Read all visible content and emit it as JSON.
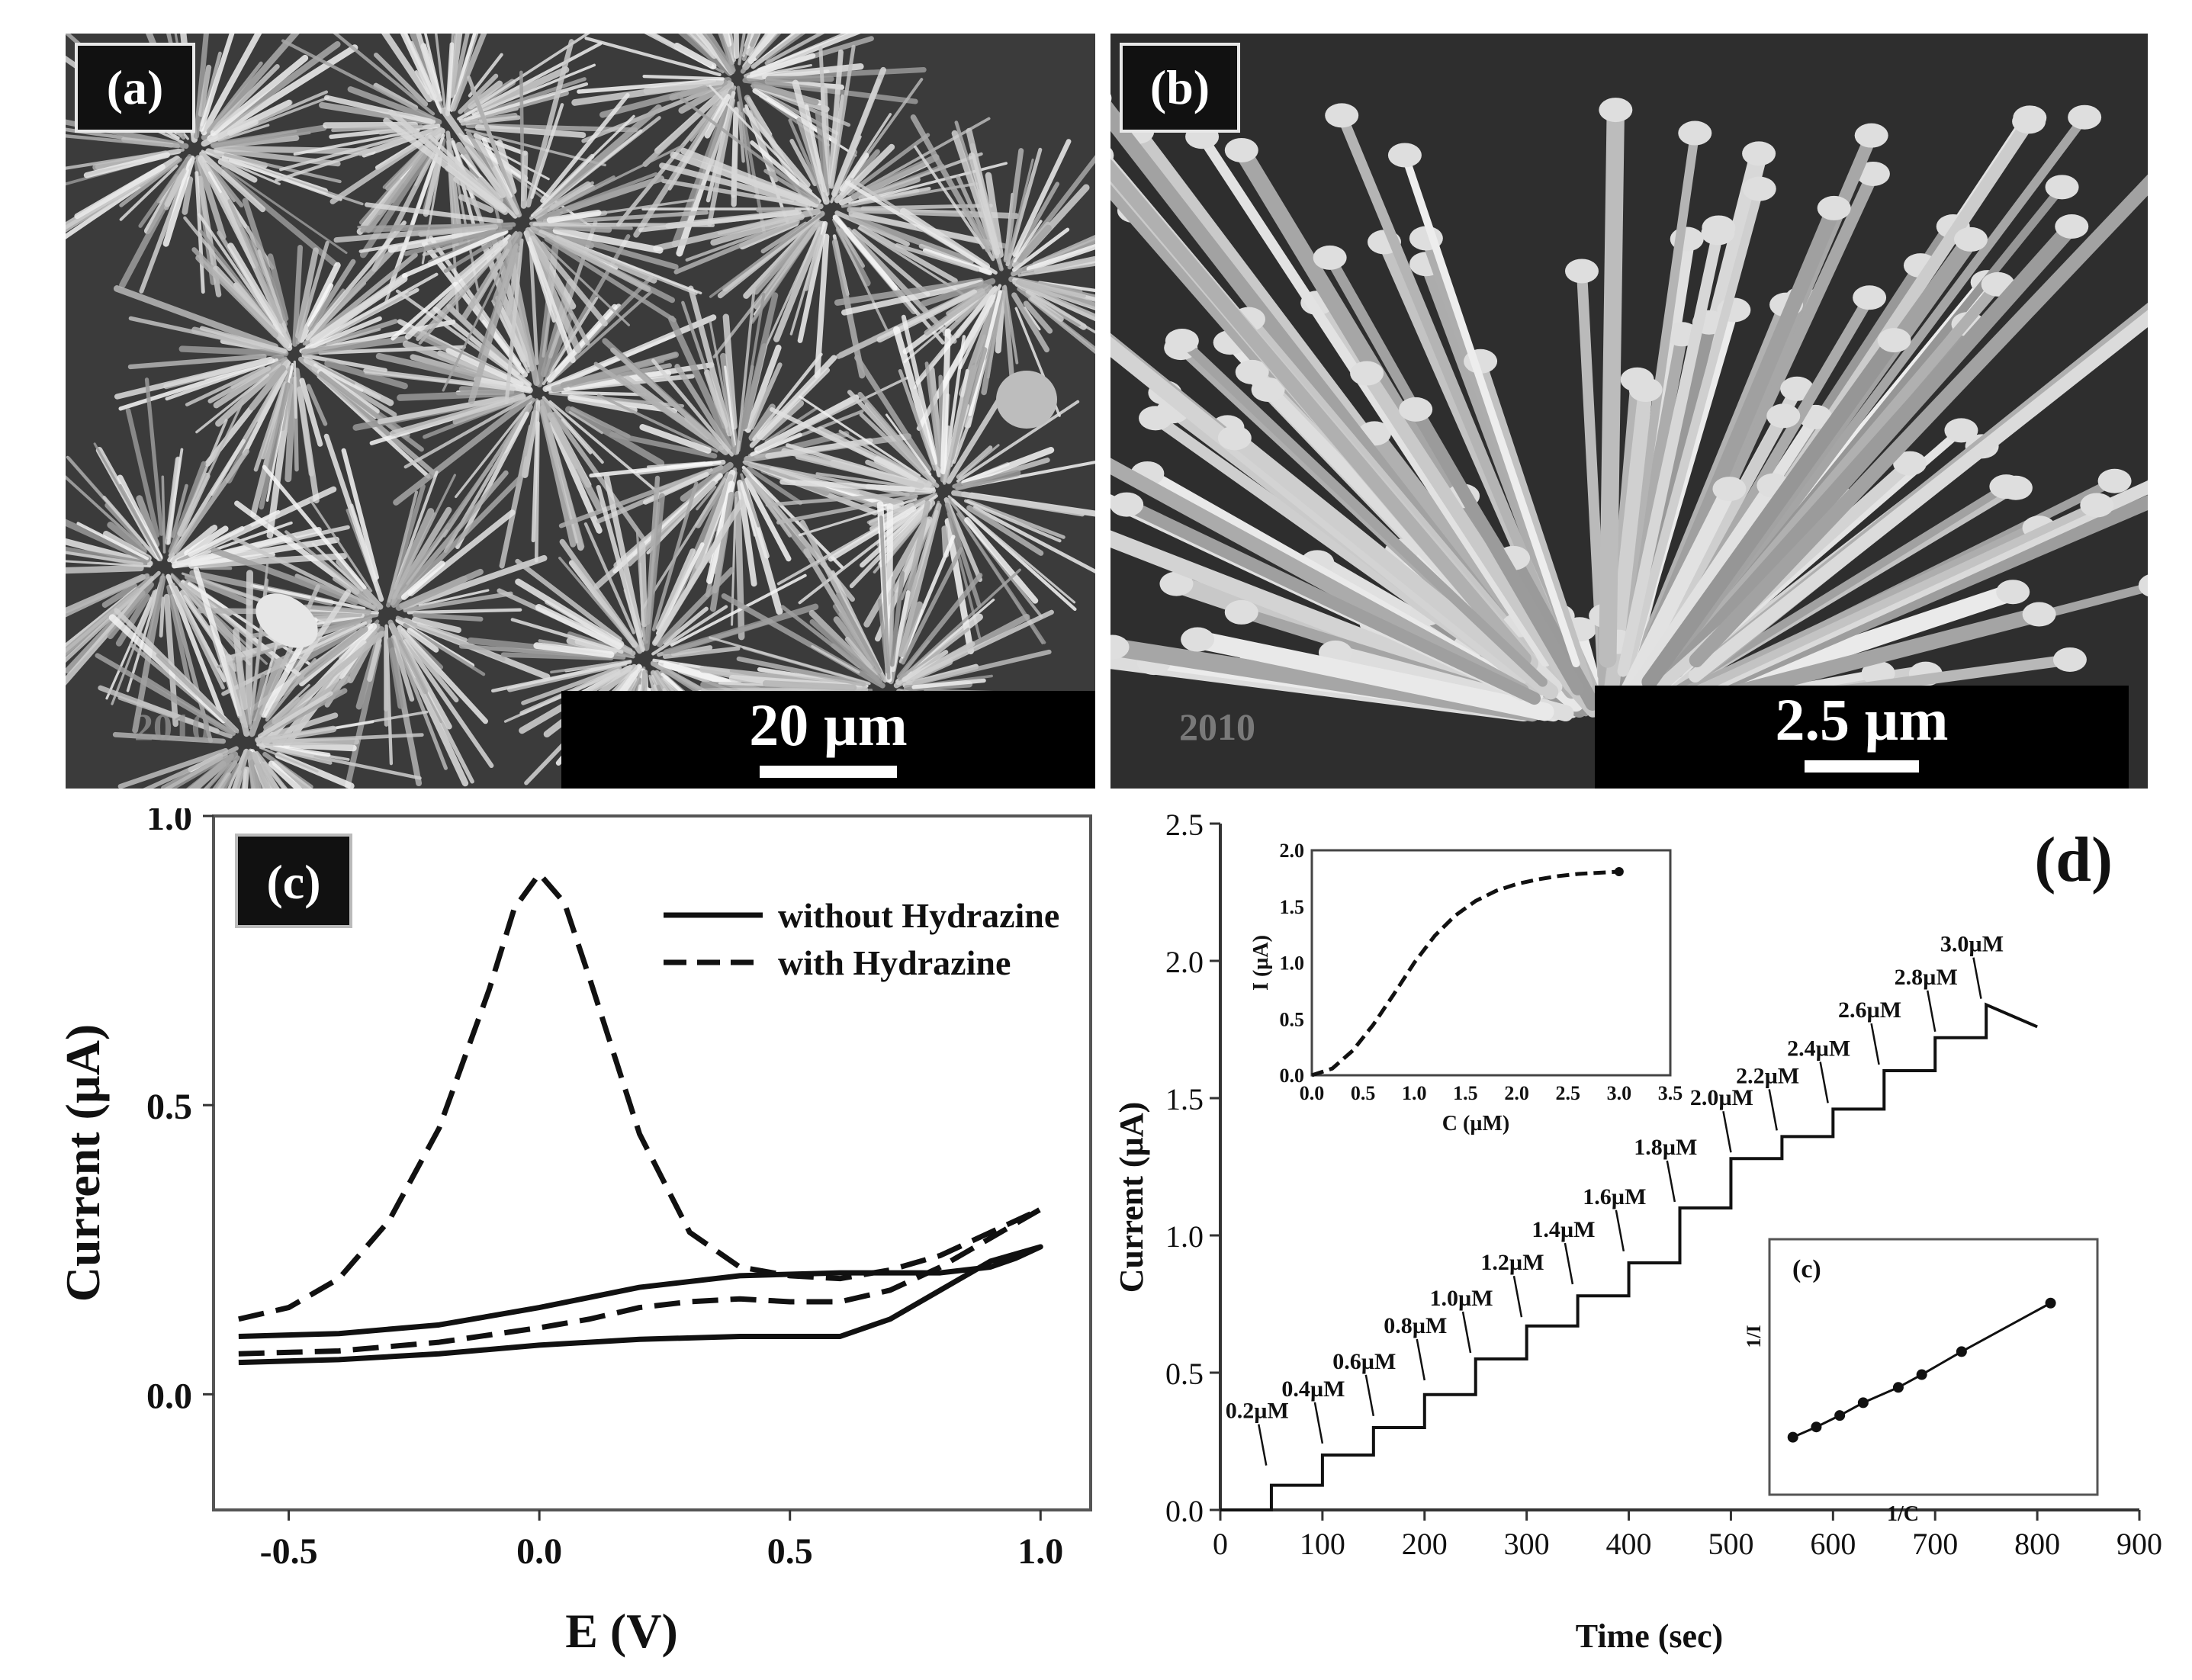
{
  "panels": {
    "a": {
      "label": "(a)",
      "scale": "20 µm",
      "watermark": "2010"
    },
    "b": {
      "label": "(b)",
      "scale": "2.5 µm",
      "watermark": "2010"
    }
  },
  "chart_data": [
    {
      "type": "line",
      "panel_label": "(c)",
      "xlabel": "E (V)",
      "ylabel": "Current (µA)",
      "xlim": [
        -0.65,
        1.1
      ],
      "ylim": [
        -0.2,
        1.0
      ],
      "xticks": [
        "-0.5",
        "0.0",
        "0.5",
        "1.0"
      ],
      "yticks": [
        "0.0",
        "0.5",
        "1.0"
      ],
      "legend": {
        "placement": "top-right",
        "entries": [
          "without Hydrazine",
          "with Hydrazine"
        ]
      },
      "series": [
        {
          "name": "without Hydrazine",
          "style": "solid",
          "x": [
            -0.6,
            -0.4,
            -0.2,
            0.0,
            0.2,
            0.4,
            0.6,
            0.8,
            0.9,
            0.95,
            1.0,
            0.9,
            0.8,
            0.7,
            0.6,
            0.4,
            0.2,
            0.0,
            -0.2,
            -0.4,
            -0.6
          ],
          "y": [
            0.1,
            0.105,
            0.12,
            0.15,
            0.185,
            0.205,
            0.21,
            0.21,
            0.22,
            0.235,
            0.255,
            0.23,
            0.18,
            0.13,
            0.1,
            0.1,
            0.095,
            0.085,
            0.07,
            0.06,
            0.055
          ]
        },
        {
          "name": "with Hydrazine",
          "style": "dashed",
          "x": [
            -0.6,
            -0.5,
            -0.4,
            -0.3,
            -0.2,
            -0.1,
            -0.05,
            0.0,
            0.05,
            0.1,
            0.2,
            0.3,
            0.4,
            0.5,
            0.6,
            0.7,
            0.8,
            0.9,
            1.0,
            0.9,
            0.8,
            0.7,
            0.6,
            0.5,
            0.4,
            0.3,
            0.2,
            0.1,
            0.0,
            -0.2,
            -0.4,
            -0.6
          ],
          "y": [
            0.13,
            0.15,
            0.2,
            0.3,
            0.46,
            0.7,
            0.84,
            0.9,
            0.85,
            0.72,
            0.45,
            0.28,
            0.22,
            0.205,
            0.2,
            0.215,
            0.24,
            0.28,
            0.32,
            0.27,
            0.22,
            0.18,
            0.16,
            0.16,
            0.165,
            0.16,
            0.15,
            0.13,
            0.115,
            0.09,
            0.075,
            0.07
          ]
        }
      ]
    },
    {
      "type": "line",
      "panel_label": "(d)",
      "xlabel": "Time (sec)",
      "ylabel": "Current (µA)",
      "xlim": [
        0,
        900
      ],
      "ylim": [
        0,
        2.5
      ],
      "xticks": [
        "0",
        "100",
        "200",
        "300",
        "400",
        "500",
        "600",
        "700",
        "800",
        "900"
      ],
      "yticks": [
        "0.0",
        "0.5",
        "1.0",
        "1.5",
        "2.0",
        "2.5"
      ],
      "step_times": [
        50,
        100,
        150,
        200,
        250,
        300,
        350,
        400,
        450,
        500,
        550,
        600,
        650,
        700,
        750
      ],
      "step_levels": [
        0.0,
        0.09,
        0.2,
        0.3,
        0.42,
        0.55,
        0.67,
        0.78,
        0.9,
        1.1,
        1.28,
        1.36,
        1.46,
        1.6,
        1.72,
        1.84
      ],
      "end_point": [
        800,
        1.76
      ],
      "step_labels": [
        {
          "text": "0.2µM",
          "x": 45,
          "y": 0.14
        },
        {
          "text": "0.4µM",
          "x": 100,
          "y": 0.22
        },
        {
          "text": "0.6µM",
          "x": 150,
          "y": 0.32
        },
        {
          "text": "0.8µM",
          "x": 200,
          "y": 0.45
        },
        {
          "text": "1.0µM",
          "x": 245,
          "y": 0.55
        },
        {
          "text": "1.2µM",
          "x": 295,
          "y": 0.68
        },
        {
          "text": "1.4µM",
          "x": 345,
          "y": 0.8
        },
        {
          "text": "1.6µM",
          "x": 395,
          "y": 0.92
        },
        {
          "text": "1.8µM",
          "x": 445,
          "y": 1.1
        },
        {
          "text": "2.0µM",
          "x": 500,
          "y": 1.28
        },
        {
          "text": "2.2µM",
          "x": 545,
          "y": 1.36
        },
        {
          "text": "2.4µM",
          "x": 595,
          "y": 1.46
        },
        {
          "text": "2.6µM",
          "x": 645,
          "y": 1.6
        },
        {
          "text": "2.8µM",
          "x": 700,
          "y": 1.72
        },
        {
          "text": "3.0µM",
          "x": 745,
          "y": 1.84
        }
      ],
      "inset_top": {
        "xlabel": "C (µM)",
        "ylabel": "I (µA)",
        "xlim": [
          0,
          3.5
        ],
        "ylim": [
          0,
          2.0
        ],
        "xticks": [
          "0.0",
          "0.5",
          "1.0",
          "1.5",
          "2.0",
          "2.5",
          "3.0",
          "3.5"
        ],
        "yticks": [
          "0.0",
          "0.5",
          "1.0",
          "1.5",
          "2.0"
        ],
        "x": [
          0,
          0.2,
          0.4,
          0.6,
          0.8,
          1.0,
          1.2,
          1.4,
          1.6,
          1.8,
          2.0,
          2.2,
          2.4,
          2.6,
          2.8,
          3.0
        ],
        "y": [
          0,
          0.06,
          0.22,
          0.45,
          0.72,
          1.0,
          1.24,
          1.42,
          1.55,
          1.64,
          1.7,
          1.74,
          1.77,
          1.79,
          1.8,
          1.81
        ]
      },
      "inset_bottom": {
        "label": "(c)",
        "xlabel": "1/C",
        "ylabel": "1/I",
        "xlim": [
          0,
          1.4
        ],
        "ylim": [
          0,
          2.0
        ],
        "x": [
          0.1,
          0.2,
          0.3,
          0.4,
          0.55,
          0.65,
          0.82,
          1.2
        ],
        "y": [
          0.45,
          0.53,
          0.62,
          0.72,
          0.84,
          0.94,
          1.12,
          1.5
        ]
      }
    }
  ]
}
